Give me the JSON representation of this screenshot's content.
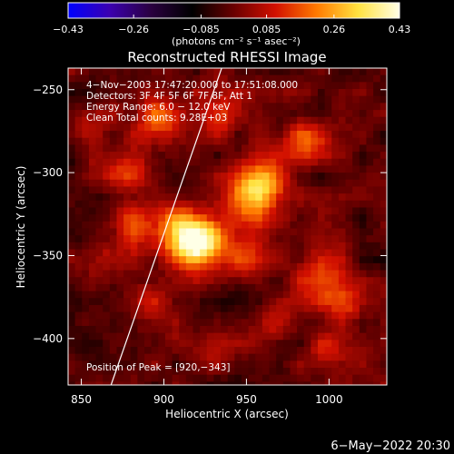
{
  "chart_data": {
    "type": "heatmap",
    "title": "Reconstructed RHESSI Image",
    "xlabel": "Heliocentric X (arcsec)",
    "ylabel": "Heliocentric Y (arcsec)",
    "xlim": [
      842,
      1035
    ],
    "ylim": [
      -428,
      -237
    ],
    "x_ticks": [
      850,
      900,
      950,
      1000
    ],
    "x_tick_labels": [
      "850",
      "900",
      "950",
      "1000"
    ],
    "y_ticks": [
      -250,
      -300,
      -350,
      -400
    ],
    "y_tick_labels": [
      "−250",
      "−300",
      "−350",
      "−400"
    ],
    "colorbar": {
      "min": -0.43,
      "max": 0.43,
      "ticks": [
        -0.43,
        -0.26,
        -0.085,
        0.085,
        0.26,
        0.43
      ],
      "tick_labels": [
        "−0.43",
        "−0.26",
        "−0.085",
        "0.085",
        "0.26",
        "0.43"
      ],
      "units_label": "(photons cm⁻² s⁻¹ asec⁻²)",
      "colors": [
        "#0000ff",
        "#3b00b0",
        "#2a0040",
        "#000000",
        "#6a0000",
        "#d21000",
        "#ff7a00",
        "#ffe240",
        "#ffffe6"
      ]
    },
    "annotations": [
      " 4−Nov−2003 17:47:20.000 to 17:51:08.000",
      "Detectors: 3F 4F 5F 6F 7F 8F, Att 1",
      "Energy Range: 6.0 − 12.0 keV",
      "Clean      Total counts: 9.28E+03"
    ],
    "peak_label": "Position of Peak = [920,−343]",
    "peak": [
      920,
      -343
    ],
    "limb_line": [
      [
        868,
        -428
      ],
      [
        935,
        -237
      ]
    ],
    "sources": [
      {
        "x": 920,
        "y": -342,
        "peak": 0.43,
        "sigma": 10
      },
      {
        "x": 907,
        "y": -336,
        "peak": 0.2,
        "sigma": 13
      },
      {
        "x": 960,
        "y": -308,
        "peak": 0.3,
        "sigma": 10
      },
      {
        "x": 945,
        "y": -320,
        "peak": 0.16,
        "sigma": 12
      },
      {
        "x": 898,
        "y": -270,
        "peak": 0.22,
        "sigma": 11
      },
      {
        "x": 880,
        "y": -300,
        "peak": 0.17,
        "sigma": 9
      },
      {
        "x": 935,
        "y": -265,
        "peak": 0.15,
        "sigma": 10
      },
      {
        "x": 985,
        "y": -282,
        "peak": 0.18,
        "sigma": 10
      },
      {
        "x": 880,
        "y": -330,
        "peak": 0.13,
        "sigma": 9
      },
      {
        "x": 868,
        "y": -352,
        "peak": 0.13,
        "sigma": 8
      },
      {
        "x": 890,
        "y": -380,
        "peak": 0.12,
        "sigma": 12
      },
      {
        "x": 948,
        "y": -350,
        "peak": 0.13,
        "sigma": 10
      },
      {
        "x": 995,
        "y": -362,
        "peak": 0.16,
        "sigma": 11
      },
      {
        "x": 1010,
        "y": -380,
        "peak": 0.15,
        "sigma": 10
      },
      {
        "x": 965,
        "y": -392,
        "peak": 0.11,
        "sigma": 10
      },
      {
        "x": 1000,
        "y": -408,
        "peak": 0.14,
        "sigma": 9
      },
      {
        "x": 930,
        "y": -408,
        "peak": 0.08,
        "sigma": 10
      },
      {
        "x": 857,
        "y": -270,
        "peak": 0.1,
        "sigma": 8
      }
    ],
    "noise_amplitude": 0.06,
    "background_level": -0.02
  },
  "footer_date": "6−May−2022 20:30"
}
